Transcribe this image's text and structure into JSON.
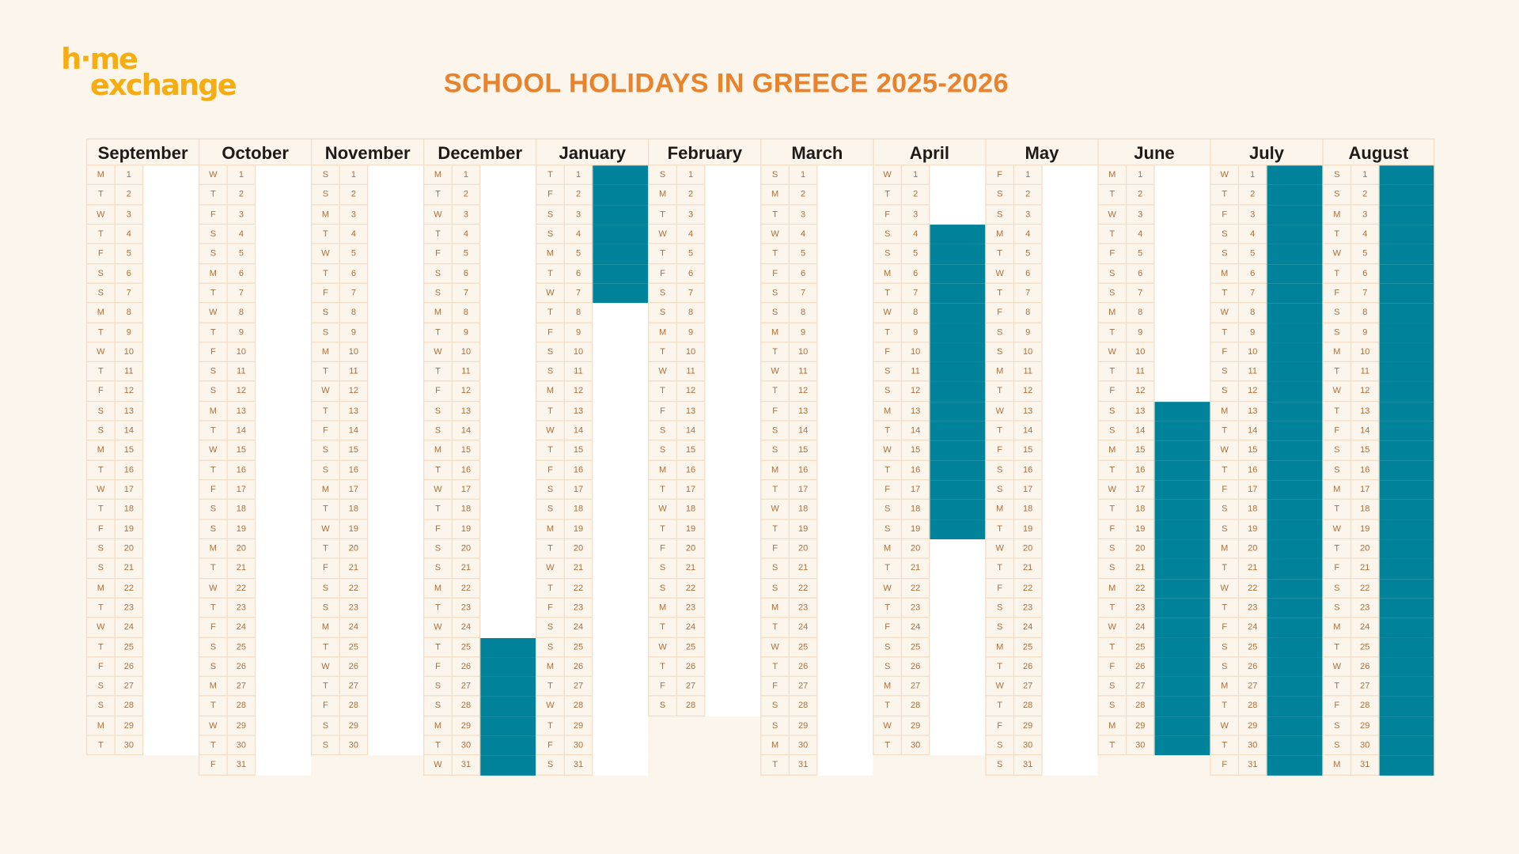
{
  "logo": {
    "line1": "h·me",
    "line2": "exchange",
    "color": "#f5ad12"
  },
  "title": "SCHOOL HOLIDAYS IN GREECE 2025-2026",
  "colors": {
    "holiday": "#00829b",
    "title": "#e8822b",
    "background": "#fcf5eb"
  },
  "weekday_letters": [
    "M",
    "T",
    "W",
    "T",
    "F",
    "S",
    "S"
  ],
  "months": [
    {
      "name": "September",
      "first_weekday_index": 0,
      "days": 30,
      "holidays": []
    },
    {
      "name": "October",
      "first_weekday_index": 2,
      "days": 31,
      "holidays": []
    },
    {
      "name": "November",
      "first_weekday_index": 5,
      "days": 30,
      "holidays": []
    },
    {
      "name": "December",
      "first_weekday_index": 0,
      "days": 31,
      "holidays": [
        [
          25,
          31
        ]
      ]
    },
    {
      "name": "January",
      "first_weekday_index": 3,
      "days": 31,
      "holidays": [
        [
          1,
          7
        ]
      ]
    },
    {
      "name": "February",
      "first_weekday_index": 6,
      "days": 28,
      "holidays": []
    },
    {
      "name": "March",
      "first_weekday_index": 6,
      "days": 31,
      "holidays": []
    },
    {
      "name": "April",
      "first_weekday_index": 2,
      "days": 30,
      "holidays": [
        [
          4,
          19
        ]
      ]
    },
    {
      "name": "May",
      "first_weekday_index": 4,
      "days": 31,
      "holidays": []
    },
    {
      "name": "June",
      "first_weekday_index": 0,
      "days": 30,
      "holidays": [
        [
          13,
          30
        ]
      ]
    },
    {
      "name": "July",
      "first_weekday_index": 2,
      "days": 31,
      "holidays": [
        [
          1,
          31
        ]
      ]
    },
    {
      "name": "August",
      "first_weekday_index": 5,
      "days": 31,
      "holidays": [
        [
          1,
          31
        ]
      ]
    }
  ]
}
